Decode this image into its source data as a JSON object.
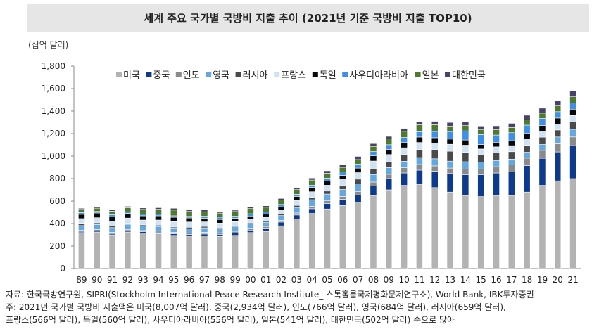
{
  "title": "세계 주요 국가별 국방비 지출 추이 (2021년 기준 국방비 지출 TOP10)",
  "unit_label": "(십억 달러)",
  "notes": [
    "자료: 한국국방연구원, SIPRI(Stockholm International Peace Research Institute_ 스톡홀름국제평화문제연구소), World Bank, IBK투자증권",
    "주: 2021년 국가별 국방비 지출액은 미국(8,007억 달러), 중국(2,934억 달러), 인도(766억 달러), 영국(684억 달러), 러시아(659억 달러),",
    "프랑스(566억 달러), 독일(560억 달러), 사우디아라비아(556억 달러), 일본(541억 달러), 대한민국(502억 달러) 순으로 많아"
  ],
  "chart_data": {
    "type": "bar",
    "stacked": true,
    "title": "세계 주요 국가별 국방비 지출 추이 (2021년 기준 국방비 지출 TOP10)",
    "ylabel": "(십억 달러)",
    "xlabel": "",
    "ylim": [
      0,
      1800
    ],
    "yticks": [
      0,
      200,
      400,
      600,
      800,
      1000,
      1200,
      1400,
      1600,
      1800
    ],
    "yticks_labels": [
      "0",
      "200",
      "400",
      "600",
      "800",
      "1,000",
      "1,200",
      "1,400",
      "1,600",
      "1,800"
    ],
    "legend_position": "top",
    "categories": [
      "89",
      "90",
      "91",
      "92",
      "93",
      "94",
      "95",
      "96",
      "97",
      "98",
      "99",
      "00",
      "01",
      "02",
      "03",
      "04",
      "05",
      "06",
      "07",
      "08",
      "09",
      "10",
      "11",
      "12",
      "13",
      "14",
      "15",
      "16",
      "17",
      "18",
      "19",
      "20",
      "21"
    ],
    "series": [
      {
        "name": "미국",
        "color": "#b3b3b3",
        "values": [
          320,
          325,
          300,
          325,
          315,
          310,
          295,
          288,
          290,
          285,
          295,
          320,
          330,
          380,
          440,
          490,
          530,
          560,
          590,
          650,
          700,
          740,
          750,
          720,
          680,
          650,
          640,
          650,
          650,
          680,
          740,
          780,
          800
        ]
      },
      {
        "name": "중국",
        "color": "#0d3a8c",
        "values": [
          10,
          10,
          11,
          12,
          12,
          14,
          14,
          15,
          17,
          19,
          21,
          22,
          28,
          33,
          36,
          42,
          47,
          55,
          65,
          85,
          100,
          110,
          125,
          145,
          165,
          185,
          195,
          200,
          210,
          235,
          240,
          257,
          293
        ]
      },
      {
        "name": "인도",
        "color": "#8a8a8a",
        "values": [
          12,
          12,
          11,
          11,
          11,
          12,
          13,
          14,
          15,
          14,
          15,
          16,
          16,
          16,
          18,
          22,
          25,
          26,
          29,
          34,
          38,
          46,
          50,
          48,
          48,
          50,
          51,
          56,
          63,
          67,
          71,
          73,
          77
        ]
      },
      {
        "name": "영국",
        "color": "#63a8e0",
        "values": [
          40,
          45,
          42,
          45,
          40,
          38,
          37,
          38,
          40,
          40,
          40,
          38,
          38,
          42,
          50,
          58,
          60,
          62,
          68,
          67,
          60,
          58,
          62,
          63,
          62,
          65,
          60,
          55,
          50,
          52,
          52,
          60,
          68
        ]
      },
      {
        "name": "러시아",
        "color": "#4a4a4a",
        "values": [
          20,
          15,
          14,
          10,
          10,
          12,
          10,
          12,
          13,
          8,
          8,
          9,
          11,
          13,
          17,
          20,
          27,
          35,
          43,
          55,
          52,
          59,
          70,
          81,
          88,
          84,
          66,
          69,
          66,
          62,
          65,
          62,
          66
        ]
      },
      {
        "name": "프랑스",
        "color": "#cfe1f3",
        "values": [
          42,
          45,
          43,
          46,
          43,
          45,
          48,
          47,
          40,
          38,
          38,
          34,
          33,
          36,
          45,
          51,
          52,
          53,
          58,
          65,
          64,
          61,
          64,
          60,
          62,
          63,
          51,
          52,
          54,
          57,
          55,
          53,
          57
        ]
      },
      {
        "name": "독일",
        "color": "#080808",
        "values": [
          38,
          42,
          40,
          41,
          38,
          38,
          39,
          36,
          32,
          32,
          30,
          28,
          27,
          29,
          35,
          38,
          37,
          37,
          40,
          46,
          46,
          46,
          48,
          46,
          46,
          46,
          40,
          41,
          44,
          48,
          49,
          53,
          56
        ]
      },
      {
        "name": "사우디아라비아",
        "color": "#3d8fe8",
        "values": [
          15,
          14,
          17,
          15,
          16,
          14,
          13,
          14,
          18,
          21,
          18,
          20,
          21,
          21,
          19,
          21,
          25,
          30,
          36,
          38,
          41,
          45,
          48,
          56,
          67,
          81,
          88,
          64,
          71,
          74,
          62,
          57,
          56
        ]
      },
      {
        "name": "일본",
        "color": "#4e7a2c",
        "values": [
          29,
          29,
          32,
          36,
          41,
          44,
          51,
          44,
          40,
          36,
          42,
          46,
          41,
          39,
          42,
          45,
          44,
          42,
          40,
          46,
          51,
          55,
          61,
          60,
          49,
          47,
          42,
          47,
          46,
          47,
          48,
          51,
          54
        ]
      },
      {
        "name": "대한민국",
        "color": "#4b3f6b",
        "values": [
          10,
          11,
          12,
          13,
          13,
          14,
          16,
          17,
          16,
          11,
          12,
          14,
          13,
          14,
          16,
          18,
          22,
          25,
          28,
          25,
          23,
          26,
          29,
          30,
          32,
          34,
          34,
          35,
          37,
          41,
          44,
          46,
          50
        ]
      }
    ]
  }
}
